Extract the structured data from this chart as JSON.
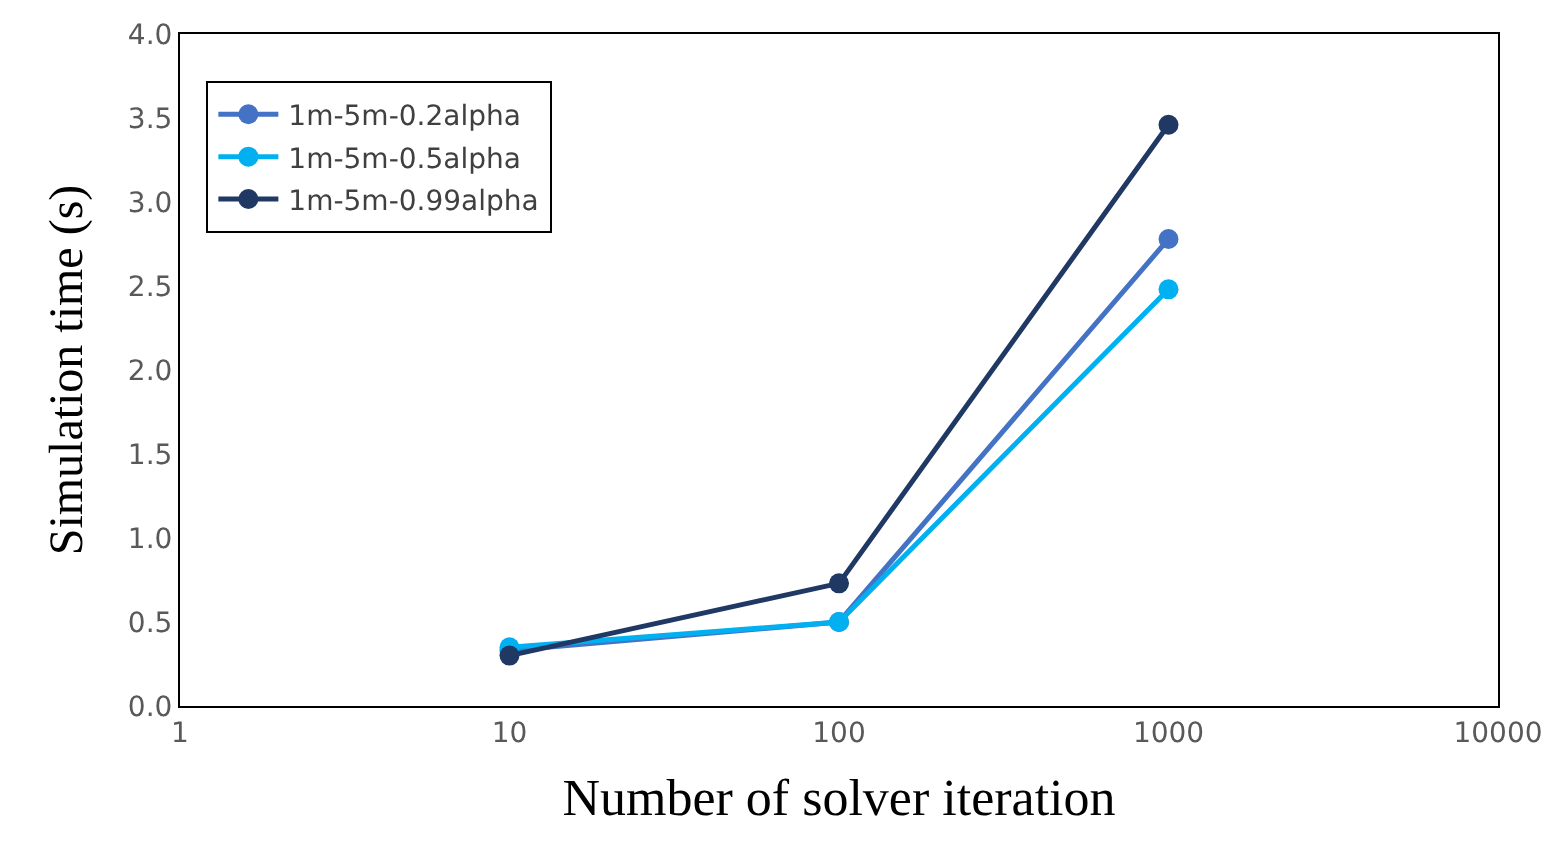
{
  "chart_data": {
    "type": "line",
    "xlabel": "Number of solver iteration",
    "ylabel": "Simulation time (s)",
    "x": [
      10,
      100,
      1000
    ],
    "log": "x",
    "xlim": [
      1,
      10000
    ],
    "xticks": [
      1,
      10,
      100,
      1000,
      10000
    ],
    "ylim": [
      0,
      4.0
    ],
    "yticks": [
      {
        "value": 0,
        "label": "0.0"
      },
      0.5,
      {
        "value": 1,
        "label": "1.0"
      },
      1.5,
      {
        "value": 2,
        "label": "2.0"
      },
      2.5,
      {
        "value": 3,
        "label": "3.0"
      },
      3.5,
      {
        "value": 4,
        "label": "4.0"
      }
    ],
    "legend": "top left",
    "marker": "circle",
    "line_style": "solid",
    "series": [
      {
        "name": "1m-5m-0.2alpha",
        "color": "#4472c4",
        "values": [
          0.33,
          0.5,
          2.78
        ]
      },
      {
        "name": "1m-5m-0.5alpha",
        "color": "#00b0f0",
        "values": [
          0.35,
          0.5,
          2.48
        ]
      },
      {
        "name": "1m-5m-0.99alpha",
        "color": "#203864",
        "values": [
          0.3,
          0.73,
          3.46
        ]
      }
    ]
  }
}
